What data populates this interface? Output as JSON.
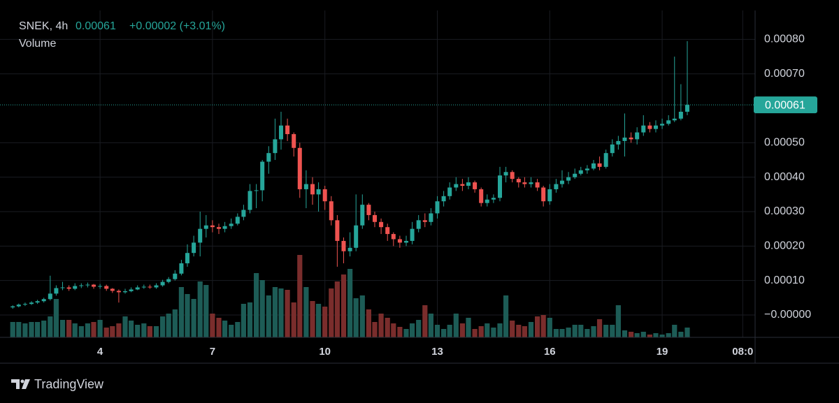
{
  "chart_data": {
    "type": "candlestick",
    "title": "SNEK, 4h",
    "price": "0.00061",
    "change": "+0.00002 (+3.01%)",
    "volume_label": "Volume",
    "brand": "TradingView",
    "up_color": "#26a69a",
    "down_color": "#ef5350",
    "volume_up_color": "#1d5c56",
    "volume_down_color": "#7a2d2c",
    "grid": true,
    "xlim": [
      1.33,
      21.48
    ],
    "xticks": [
      4,
      7,
      10,
      13,
      16,
      19,
      {
        "value": 21.15,
        "label": "08:0"
      }
    ],
    "ylim": [
      -6.5e-05,
      0.000884
    ],
    "yticks": [
      {
        "value": 0.0008,
        "label": "0.00080"
      },
      {
        "value": 0.0007,
        "label": "0.00070"
      },
      {
        "value": 0.0005,
        "label": "0.00050"
      },
      {
        "value": 0.0004,
        "label": "0.00040"
      },
      {
        "value": 0.0003,
        "label": "0.00030"
      },
      {
        "value": 0.0002,
        "label": "0.00020"
      },
      {
        "value": 0.0001,
        "label": "0.00010"
      },
      {
        "value": 0,
        "label": "−0.00000"
      }
    ],
    "x": [
      1.67,
      1.83,
      2,
      2.17,
      2.33,
      2.5,
      2.67,
      2.83,
      3,
      3.17,
      3.33,
      3.5,
      3.67,
      3.83,
      4,
      4.17,
      4.33,
      4.5,
      4.67,
      4.83,
      5,
      5.17,
      5.33,
      5.5,
      5.67,
      5.83,
      6,
      6.17,
      6.33,
      6.5,
      6.67,
      6.83,
      7,
      7.17,
      7.33,
      7.5,
      7.67,
      7.83,
      8,
      8.17,
      8.33,
      8.5,
      8.67,
      8.83,
      9,
      9.17,
      9.33,
      9.5,
      9.67,
      9.83,
      10,
      10.17,
      10.33,
      10.5,
      10.67,
      10.83,
      11,
      11.17,
      11.33,
      11.5,
      11.67,
      11.83,
      12,
      12.17,
      12.33,
      12.5,
      12.67,
      12.83,
      13,
      13.17,
      13.33,
      13.5,
      13.67,
      13.83,
      14,
      14.17,
      14.33,
      14.5,
      14.67,
      14.83,
      15,
      15.17,
      15.33,
      15.5,
      15.67,
      15.83,
      16,
      16.17,
      16.33,
      16.5,
      16.67,
      16.83,
      17,
      17.17,
      17.33,
      17.5,
      17.67,
      17.83,
      18,
      18.17,
      18.33,
      18.5,
      18.67,
      18.83,
      19,
      19.17,
      19.33,
      19.5,
      19.67
    ],
    "open": [
      2.2e-05,
      2.5e-05,
      3e-05,
      3.2e-05,
      3.6e-05,
      4e-05,
      4.6e-05,
      6.2e-05,
      7.8e-05,
      8e-05,
      7.6e-05,
      8.4e-05,
      8.6e-05,
      8.8e-05,
      8.2e-05,
      8.4e-05,
      7.6e-05,
      7e-05,
      6.6e-05,
      6.9e-05,
      7.4e-05,
      8e-05,
      8.2e-05,
      8e-05,
      8.6e-05,
      9.6e-05,
      0.000104,
      0.00012,
      0.00015,
      0.00018,
      0.00021,
      0.00025,
      0.00026,
      0.000255,
      0.00025,
      0.000258,
      0.000265,
      0.000285,
      0.000305,
      0.00036,
      0.000362,
      0.000445,
      0.00047,
      0.00051,
      0.00055,
      0.000525,
      0.000485,
      0.000365,
      0.00038,
      0.00035,
      0.000365,
      0.00033,
      0.000275,
      0.000215,
      0.000185,
      0.000195,
      0.00026,
      0.00032,
      0.00029,
      0.00027,
      0.000255,
      0.000235,
      0.00022,
      0.00021,
      0.000215,
      0.00025,
      0.000275,
      0.00027,
      0.000295,
      0.00033,
      0.000345,
      0.00037,
      0.00038,
      0.000375,
      0.000385,
      0.000365,
      0.000325,
      0.000335,
      0.00034,
      0.000405,
      0.000415,
      0.000395,
      0.000385,
      0.00038,
      0.000385,
      0.00037,
      0.00033,
      0.000365,
      0.00038,
      0.00039,
      0.0004,
      0.00041,
      0.00042,
      0.000425,
      0.00044,
      0.00043,
      0.00047,
      0.000495,
      0.000505,
      0.000515,
      0.00051,
      0.00053,
      0.00055,
      0.00054,
      0.00055,
      0.000555,
      0.000565,
      0.00057,
      0.00059
    ],
    "high": [
      2.8e-05,
      3.3e-05,
      3.6e-05,
      4e-05,
      4.4e-05,
      5e-05,
      0.000114,
      8.6e-05,
      9.6e-05,
      8.6e-05,
      9.2e-05,
      9.2e-05,
      9.4e-05,
      9e-05,
      9e-05,
      8.8e-05,
      7.8e-05,
      7.4e-05,
      7.6e-05,
      8e-05,
      8.6e-05,
      8.8e-05,
      8.8e-05,
      9.2e-05,
      0.000102,
      0.00011,
      0.00013,
      0.00016,
      0.000205,
      0.00023,
      0.0003,
      0.00029,
      0.000275,
      0.000265,
      0.00027,
      0.00028,
      0.000295,
      0.00032,
      0.00038,
      0.00038,
      0.00045,
      0.00049,
      0.00057,
      0.00059,
      0.00057,
      0.00053,
      0.0005,
      0.00042,
      0.0004,
      0.000385,
      0.000375,
      0.000345,
      0.00029,
      0.000225,
      0.00024,
      0.00035,
      0.00035,
      0.000325,
      0.0003,
      0.00028,
      0.000265,
      0.00024,
      0.00023,
      0.00023,
      0.00027,
      0.00029,
      0.000295,
      0.00031,
      0.000345,
      0.00036,
      0.000385,
      0.0004,
      0.000395,
      0.0004,
      0.00039,
      0.00037,
      0.00035,
      0.00035,
      0.00043,
      0.00043,
      0.00042,
      0.0004,
      0.0004,
      0.0004,
      0.000395,
      0.000375,
      0.00038,
      0.000395,
      0.00042,
      0.000415,
      0.000425,
      0.00043,
      0.000435,
      0.00045,
      0.00046,
      0.00048,
      0.00051,
      0.00052,
      0.000585,
      0.00053,
      0.000545,
      0.00058,
      0.00056,
      0.000565,
      0.00057,
      0.00058,
      0.00075,
      0.00067,
      0.000795
    ],
    "low": [
      1.8e-05,
      2.2e-05,
      2.6e-05,
      2.9e-05,
      3.2e-05,
      3.6e-05,
      4.2e-05,
      5.6e-05,
      7.2e-05,
      7e-05,
      7.2e-05,
      7.8e-05,
      8e-05,
      7.6e-05,
      7.6e-05,
      7e-05,
      6.4e-05,
      3.6e-05,
      6.2e-05,
      6.6e-05,
      7.2e-05,
      7.6e-05,
      7.6e-05,
      7.6e-05,
      8.2e-05,
      9.2e-05,
      0.0001,
      0.000115,
      0.00014,
      0.00017,
      0.00017,
      0.000225,
      0.00024,
      0.000235,
      0.00024,
      0.00025,
      0.00026,
      0.000275,
      0.000295,
      0.00031,
      0.00033,
      0.00041,
      0.00045,
      0.00048,
      0.000505,
      0.00046,
      0.00034,
      0.00031,
      0.00032,
      0.0003,
      0.000305,
      0.00026,
      0.00014,
      0.00015,
      0.00017,
      0.000185,
      0.00025,
      0.000275,
      0.000255,
      0.000235,
      0.000215,
      0.0002,
      0.000195,
      0.0002,
      0.000205,
      0.00024,
      0.000255,
      0.00026,
      0.00028,
      0.000315,
      0.000335,
      0.00036,
      0.00036,
      0.000365,
      0.000355,
      0.000315,
      0.000315,
      0.000325,
      0.00033,
      0.000385,
      0.000385,
      0.00037,
      0.00037,
      0.00037,
      0.00036,
      0.000315,
      0.00032,
      0.000355,
      0.00037,
      0.00038,
      0.000395,
      0.000405,
      0.00041,
      0.00042,
      0.00042,
      0.000425,
      0.00046,
      0.00048,
      0.00046,
      0.0005,
      0.000495,
      0.00052,
      0.00053,
      0.00053,
      0.00054,
      0.00055,
      0.00056,
      0.000565,
      0.00058
    ],
    "close": [
      2.5e-05,
      3e-05,
      3.2e-05,
      3.6e-05,
      4e-05,
      4.6e-05,
      6.2e-05,
      7.8e-05,
      8e-05,
      7.6e-05,
      8.4e-05,
      8.6e-05,
      8.8e-05,
      8.2e-05,
      8.4e-05,
      7.6e-05,
      7e-05,
      6.6e-05,
      6.9e-05,
      7.4e-05,
      8e-05,
      8.2e-05,
      8e-05,
      8.6e-05,
      9.6e-05,
      0.000104,
      0.00012,
      0.00015,
      0.00018,
      0.00021,
      0.00025,
      0.00026,
      0.000255,
      0.00025,
      0.000258,
      0.000265,
      0.000285,
      0.000305,
      0.00036,
      0.000362,
      0.000445,
      0.00047,
      0.00051,
      0.00055,
      0.000525,
      0.000485,
      0.000365,
      0.00038,
      0.00035,
      0.000365,
      0.00033,
      0.000275,
      0.000215,
      0.000185,
      0.000195,
      0.00026,
      0.00032,
      0.00029,
      0.00027,
      0.000255,
      0.000235,
      0.00022,
      0.00021,
      0.000215,
      0.00025,
      0.000275,
      0.00027,
      0.000295,
      0.00033,
      0.000345,
      0.00037,
      0.00038,
      0.000375,
      0.000385,
      0.000365,
      0.000325,
      0.000335,
      0.00034,
      0.000405,
      0.000415,
      0.000395,
      0.000385,
      0.00038,
      0.000385,
      0.00037,
      0.00033,
      0.000365,
      0.00038,
      0.00039,
      0.0004,
      0.00041,
      0.00042,
      0.000425,
      0.00044,
      0.00043,
      0.00047,
      0.000495,
      0.000505,
      0.000515,
      0.00051,
      0.00053,
      0.00055,
      0.00054,
      0.00055,
      0.000555,
      0.000565,
      0.00057,
      0.00059,
      0.00061
    ],
    "volume": [
      22,
      22,
      20,
      22,
      22,
      24,
      30,
      55,
      25,
      25,
      20,
      16,
      20,
      22,
      25,
      14,
      16,
      20,
      30,
      24,
      18,
      20,
      16,
      16,
      30,
      34,
      40,
      72,
      62,
      55,
      80,
      75,
      34,
      28,
      24,
      18,
      22,
      48,
      50,
      92,
      82,
      60,
      72,
      70,
      68,
      50,
      118,
      72,
      52,
      48,
      44,
      70,
      80,
      90,
      98,
      56,
      60,
      40,
      22,
      34,
      28,
      20,
      15,
      12,
      20,
      25,
      46,
      34,
      18,
      12,
      18,
      34,
      20,
      28,
      12,
      16,
      20,
      14,
      20,
      60,
      24,
      18,
      16,
      22,
      30,
      32,
      28,
      12,
      12,
      14,
      18,
      18,
      12,
      16,
      26,
      18,
      18,
      46,
      10,
      8,
      6,
      8,
      4,
      6,
      4,
      6,
      18,
      8,
      14
    ]
  }
}
